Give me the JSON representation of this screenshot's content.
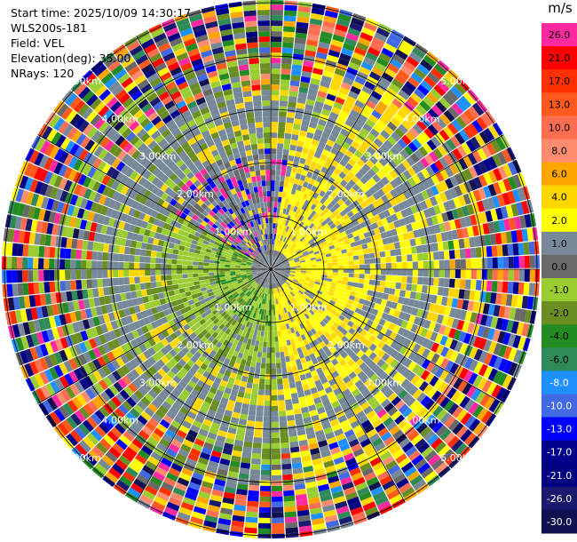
{
  "info": {
    "start_time": "Start time: 2025/10/09 14:30:17",
    "site": "WLS200s-181",
    "field": "Field: VEL",
    "elevation": "Elevation(deg): 35.00",
    "nrays": "NRays: 120"
  },
  "colorbar": {
    "unit": "m/s",
    "levels": [
      {
        "label": "26.0",
        "color": "#ff2aa0"
      },
      {
        "label": "21.0",
        "color": "#ff0000"
      },
      {
        "label": "17.0",
        "color": "#ff3000"
      },
      {
        "label": "13.0",
        "color": "#ff5a1e"
      },
      {
        "label": "10.0",
        "color": "#ff6e50"
      },
      {
        "label": "8.0",
        "color": "#ff8c6e"
      },
      {
        "label": "6.0",
        "color": "#ffa500"
      },
      {
        "label": "4.0",
        "color": "#ffd700"
      },
      {
        "label": "2.0",
        "color": "#ffff00"
      },
      {
        "label": "1.0",
        "color": "#778899"
      },
      {
        "label": "0.0",
        "color": "#696969"
      },
      {
        "label": "-1.0",
        "color": "#9acd32"
      },
      {
        "label": "-2.0",
        "color": "#6b8e23"
      },
      {
        "label": "-4.0",
        "color": "#228b22"
      },
      {
        "label": "-6.0",
        "color": "#2e8b57"
      },
      {
        "label": "-8.0",
        "color": "#1e90ff"
      },
      {
        "label": "-10.0",
        "color": "#4169e1"
      },
      {
        "label": "-13.0",
        "color": "#0000ff"
      },
      {
        "label": "-17.0",
        "color": "#00008b"
      },
      {
        "label": "-21.0",
        "color": "#000080"
      },
      {
        "label": "-26.0",
        "color": "#191970"
      },
      {
        "label": "-30.0",
        "color": "#101050"
      }
    ]
  },
  "chart_data": {
    "type": "heatmap",
    "projection": "polar PPI",
    "field": "VEL",
    "elevation_deg": 35.0,
    "nrays": 120,
    "range_rings_km": [
      "1.00km",
      "2.00km",
      "3.00km",
      "4.00km",
      "5.00km"
    ],
    "max_range_km": 5.0,
    "pattern": {
      "inner_east": "positive velocities (yellow, 2-4 m/s)",
      "inner_west": "negative velocities (green, -1 to -4 m/s)",
      "near_center": "grey (0-1 m/s)",
      "outer_ring": "noisy, all colors"
    }
  }
}
